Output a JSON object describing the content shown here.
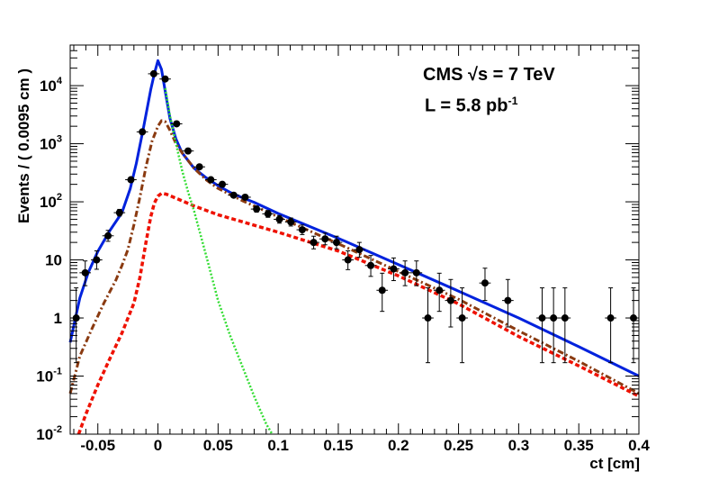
{
  "chart_data": {
    "type": "scatter",
    "xlabel": "ct [cm]",
    "ylabel": "Events / ( 0.0095 cm )",
    "xlim": [
      -0.073,
      0.4
    ],
    "ylim": [
      0.01,
      50000
    ],
    "yscale": "log",
    "x_ticks": [
      -0.05,
      0,
      0.05,
      0.1,
      0.15,
      0.2,
      0.25,
      0.3,
      0.35,
      0.4
    ],
    "x_tick_labels": [
      "-0.05",
      "0",
      "0.05",
      "0.1",
      "0.15",
      "0.2",
      "0.25",
      "0.3",
      "0.35",
      "0.4"
    ],
    "y_ticks": [
      0.01,
      0.1,
      1,
      10,
      100,
      1000,
      10000
    ],
    "y_tick_labels": [
      {
        "base": "10",
        "exp": "-2"
      },
      {
        "base": "10",
        "exp": "-1"
      },
      {
        "base": "1",
        "exp": ""
      },
      {
        "base": "10",
        "exp": ""
      },
      {
        "base": "10",
        "exp": "2"
      },
      {
        "base": "10",
        "exp": "3"
      },
      {
        "base": "10",
        "exp": "4"
      }
    ],
    "annotations": {
      "line1": "CMS √s = 7 TeV",
      "line2_prefix": "L = 5.8 pb",
      "line2_sup": "-1"
    },
    "bin_half_width": 0.00475,
    "data_points": {
      "x": [
        -0.068,
        -0.0605,
        -0.051,
        -0.0415,
        -0.032,
        -0.0225,
        -0.013,
        -0.0035,
        0.006,
        0.0155,
        0.025,
        0.0345,
        0.044,
        0.0535,
        0.063,
        0.0725,
        0.082,
        0.0915,
        0.101,
        0.1105,
        0.12,
        0.1295,
        0.139,
        0.1485,
        0.158,
        0.1675,
        0.177,
        0.1865,
        0.196,
        0.2055,
        0.215,
        0.2245,
        0.234,
        0.2435,
        0.253,
        0.272,
        0.291,
        0.3195,
        0.329,
        0.3385,
        0.3765,
        0.3955
      ],
      "y": [
        1,
        6,
        10,
        26,
        65,
        240,
        1600,
        16000,
        13000,
        2200,
        750,
        400,
        240,
        200,
        130,
        120,
        75,
        62,
        50,
        45,
        33,
        20,
        23,
        20,
        10,
        15,
        8,
        3,
        7,
        6,
        6,
        1,
        3,
        2,
        1,
        4,
        2,
        1,
        1,
        1,
        1,
        1
      ],
      "err_low": [
        0.83,
        2.4,
        3.1,
        5.1,
        8.1,
        15.5,
        40,
        126,
        114,
        47,
        27,
        20,
        15.5,
        14.1,
        11.4,
        11,
        8.7,
        7.9,
        7.1,
        6.7,
        5.7,
        4.5,
        4.8,
        4.5,
        3.2,
        3.9,
        2.8,
        1.7,
        2.6,
        2.4,
        2.4,
        0.83,
        1.7,
        1.3,
        0.83,
        2,
        1.3,
        0.83,
        0.83,
        0.83,
        0.83,
        0.83
      ],
      "err_high": [
        2.3,
        3.6,
        4.3,
        6.2,
        9.1,
        16.5,
        41,
        127,
        115,
        48,
        28,
        21,
        16.5,
        15.1,
        12.4,
        12,
        9.7,
        8.9,
        8.1,
        7.7,
        6.8,
        5.6,
        5.9,
        5.6,
        4.3,
        5,
        3.9,
        2.9,
        3.8,
        3.6,
        3.6,
        2.3,
        2.9,
        2.6,
        2.3,
        3.2,
        2.6,
        2.3,
        2.3,
        2.3,
        2.3,
        2.3
      ]
    },
    "series": [
      {
        "color": "#0022dd",
        "style": "solid",
        "x": [
          -0.073,
          -0.065,
          -0.058,
          -0.05,
          -0.04,
          -0.03,
          -0.023,
          -0.018,
          -0.012,
          -0.006,
          -0.003,
          0,
          0.003,
          0.006,
          0.01,
          0.015,
          0.02,
          0.03,
          0.04,
          0.05,
          0.06,
          0.07,
          0.08,
          0.1,
          0.15,
          0.2,
          0.25,
          0.3,
          0.35,
          0.4
        ],
        "y": [
          0.38,
          2.2,
          6,
          14,
          32,
          65,
          170,
          460,
          1900,
          8500,
          16000,
          27000,
          19000,
          8000,
          2700,
          1200,
          700,
          380,
          260,
          190,
          145,
          118,
          98,
          63,
          23.5,
          8.3,
          2.9,
          1.0,
          0.32,
          0.1
        ]
      },
      {
        "color": "#8a3a10",
        "style": "dashdot",
        "x": [
          -0.073,
          -0.065,
          -0.055,
          -0.045,
          -0.035,
          -0.03,
          -0.025,
          -0.02,
          -0.015,
          -0.01,
          -0.005,
          0,
          0.003,
          0.006,
          0.01,
          0.015,
          0.02,
          0.03,
          0.04,
          0.05,
          0.07,
          0.1,
          0.15,
          0.2,
          0.25,
          0.3,
          0.35,
          0.4
        ],
        "y": [
          0.05,
          0.22,
          0.65,
          1.8,
          4.5,
          8,
          15,
          40,
          120,
          400,
          1100,
          2000,
          2500,
          2400,
          1700,
          1000,
          700,
          380,
          240,
          170,
          105,
          55,
          19,
          6.3,
          2.1,
          0.6,
          0.18,
          0.05
        ]
      },
      {
        "color": "#ee1100",
        "style": "dash",
        "x": [
          -0.066,
          -0.06,
          -0.05,
          -0.04,
          -0.03,
          -0.02,
          -0.015,
          -0.01,
          -0.006,
          -0.003,
          0,
          0.003,
          0.007,
          0.015,
          0.03,
          0.05,
          0.1,
          0.15,
          0.2,
          0.25,
          0.3,
          0.35,
          0.4
        ],
        "y": [
          0.01,
          0.022,
          0.07,
          0.2,
          0.55,
          1.8,
          5,
          20,
          55,
          95,
          125,
          140,
          135,
          115,
          85,
          60,
          30,
          14.2,
          5.3,
          1.75,
          0.48,
          0.15,
          0.045
        ]
      },
      {
        "color": "#33dd33",
        "style": "dot",
        "x": [
          0.006,
          0.01,
          0.015,
          0.02,
          0.025,
          0.03,
          0.04,
          0.05,
          0.06,
          0.07,
          0.08,
          0.09,
          0.095
        ],
        "y": [
          9000,
          3000,
          1000,
          350,
          150,
          70,
          12,
          2,
          0.5,
          0.15,
          0.045,
          0.015,
          0.01
        ]
      }
    ]
  }
}
